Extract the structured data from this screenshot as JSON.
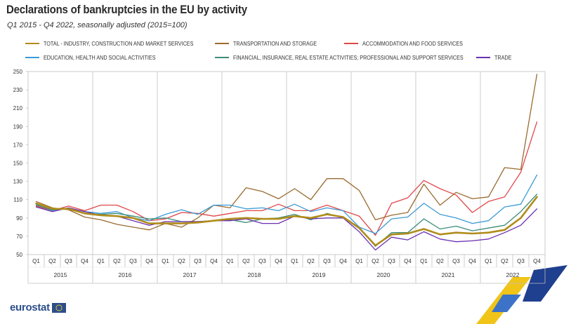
{
  "title": "Declarations of bankruptcies in the EU by activity",
  "subtitle": "Q1 2015 - Q4 2022, seasonally adjusted  (2015=100)",
  "logo": {
    "text": "eurostat",
    "icon": "eu-flag-icon"
  },
  "chart_data": {
    "type": "line",
    "ylim": [
      50,
      250
    ],
    "yticks": [
      50,
      70,
      90,
      110,
      130,
      150,
      170,
      190,
      210,
      230,
      250
    ],
    "categories": [
      "Q1",
      "Q2",
      "Q3",
      "Q4",
      "Q1",
      "Q2",
      "Q3",
      "Q4",
      "Q1",
      "Q2",
      "Q3",
      "Q4",
      "Q1",
      "Q2",
      "Q3",
      "Q4",
      "Q1",
      "Q2",
      "Q3",
      "Q4",
      "Q1",
      "Q2",
      "Q3",
      "Q4",
      "Q1",
      "Q2",
      "Q3",
      "Q4",
      "Q1",
      "Q2",
      "Q3",
      "Q4"
    ],
    "years": [
      "2015",
      "2016",
      "2017",
      "2018",
      "2019",
      "2020",
      "2021",
      "2022"
    ],
    "grid": "vertical year separators",
    "legend_position": "top",
    "series": [
      {
        "name": "TOTAL - INDUSTRY, CONSTRUCTION AND MARKET SERVICES",
        "color": "#b08c1a",
        "values": [
          106,
          100,
          100,
          95,
          93,
          92,
          90,
          84,
          84,
          84,
          85,
          87,
          89,
          90,
          89,
          89,
          92,
          90,
          94,
          91,
          79,
          60,
          72,
          73,
          78,
          72,
          74,
          73,
          74,
          77,
          90,
          113
        ]
      },
      {
        "name": "TRANSPORTATION AND STORAGE",
        "color": "#9a6b2f",
        "values": [
          108,
          101,
          99,
          91,
          88,
          83,
          80,
          77,
          84,
          80,
          90,
          104,
          101,
          123,
          119,
          111,
          122,
          110,
          133,
          133,
          120,
          88,
          93,
          96,
          127,
          104,
          118,
          111,
          113,
          145,
          143,
          247
        ]
      },
      {
        "name": "ACCOMMODATION AND FOOD SERVICES",
        "color": "#e04848",
        "values": [
          103,
          98,
          103,
          98,
          104,
          104,
          97,
          87,
          89,
          96,
          95,
          92,
          95,
          98,
          98,
          105,
          98,
          98,
          104,
          98,
          92,
          71,
          106,
          112,
          131,
          122,
          115,
          96,
          108,
          113,
          140,
          195
        ]
      },
      {
        "name": "EDUCATION,  HEALTH AND SOCIAL ACTIVITIES",
        "color": "#3c9ad6",
        "values": [
          105,
          98,
          101,
          97,
          95,
          97,
          90,
          87,
          94,
          99,
          94,
          104,
          104,
          100,
          101,
          98,
          105,
          97,
          101,
          98,
          80,
          73,
          89,
          91,
          106,
          94,
          90,
          84,
          87,
          102,
          105,
          137
        ]
      },
      {
        "name": "FINANCIAL, INSURANCE, REAL ESTATE ACTIVITIES; PROFESSIONAL AND SUPPORT SERVICES",
        "color": "#3d8c78",
        "values": [
          104,
          99,
          100,
          95,
          94,
          95,
          92,
          89,
          90,
          86,
          86,
          87,
          88,
          85,
          89,
          90,
          94,
          88,
          95,
          90,
          80,
          59,
          74,
          74,
          89,
          78,
          81,
          76,
          79,
          82,
          97,
          116
        ]
      },
      {
        "name": "TRADE",
        "color": "#6a2fb0",
        "values": [
          102,
          97,
          101,
          97,
          93,
          92,
          87,
          82,
          86,
          86,
          86,
          87,
          87,
          89,
          84,
          84,
          92,
          89,
          90,
          90,
          75,
          55,
          69,
          66,
          75,
          67,
          64,
          65,
          67,
          74,
          82,
          100
        ]
      }
    ]
  }
}
